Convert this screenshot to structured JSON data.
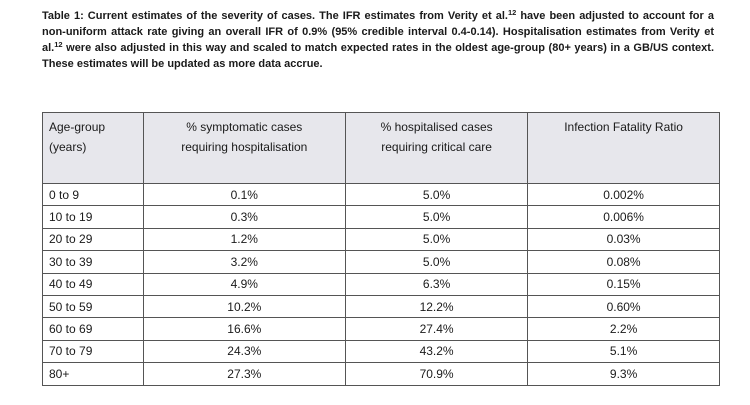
{
  "caption": [
    "Table 1: Current estimates of the severity of cases. The IFR estimates from Verity et al.",
    "12",
    " have been adjusted to account for a non-uniform attack rate giving an overall IFR of 0.9% (95% credible interval 0.4-0.14). Hospitalisation estimates from Verity et al.",
    "12",
    " were also adjusted in this way and scaled to match expected rates in the oldest age-group (80+ years) in a GB/US context. These estimates will be updated as more data accrue."
  ],
  "table": {
    "headers": [
      [
        "Age-group",
        "(years)"
      ],
      [
        "% symptomatic cases",
        "requiring hospitalisation"
      ],
      [
        "% hospitalised cases",
        "requiring critical care"
      ],
      [
        "Infection Fatality Ratio"
      ]
    ],
    "rows": [
      [
        "0 to 9",
        "0.1%",
        "5.0%",
        "0.002%"
      ],
      [
        "10 to 19",
        "0.3%",
        "5.0%",
        "0.006%"
      ],
      [
        "20 to 29",
        "1.2%",
        "5.0%",
        "0.03%"
      ],
      [
        "30 to 39",
        "3.2%",
        "5.0%",
        "0.08%"
      ],
      [
        "40 to 49",
        "4.9%",
        "6.3%",
        "0.15%"
      ],
      [
        "50 to 59",
        "10.2%",
        "12.2%",
        "0.60%"
      ],
      [
        "60 to 69",
        "16.6%",
        "27.4%",
        "2.2%"
      ],
      [
        "70 to 79",
        "24.3%",
        "43.2%",
        "5.1%"
      ],
      [
        "80+",
        "27.3%",
        "70.9%",
        "9.3%"
      ]
    ]
  }
}
